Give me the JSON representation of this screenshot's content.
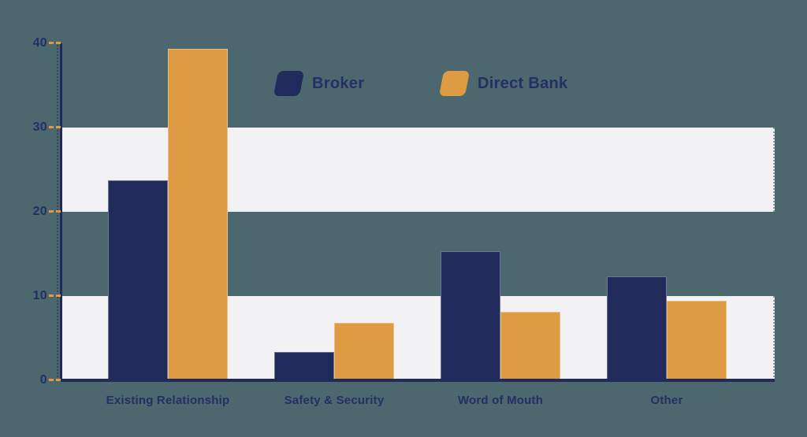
{
  "colors": {
    "background": "#4d676e",
    "navy": "#202b5b",
    "orange": "#df9b43",
    "band": "#f2f1f3",
    "text": "#262f63"
  },
  "chart_data": {
    "type": "bar",
    "title": "",
    "xlabel": "",
    "ylabel": "",
    "categories": [
      "Existing Relationship",
      "Safety & Security",
      "Word of Mouth",
      "Other"
    ],
    "series": [
      {
        "name": "Broker",
        "color": "#202b5b",
        "values": [
          23.7,
          3.4,
          15.3,
          12.3
        ]
      },
      {
        "name": "Direct Bank",
        "color": "#df9b43",
        "values": [
          39.3,
          6.8,
          8.1,
          9.4
        ]
      }
    ],
    "ylim": [
      0,
      40
    ],
    "yticks": [
      0,
      10,
      20,
      30,
      40
    ],
    "grid": false,
    "shaded_bands": [
      {
        "from": 20,
        "to": 30
      },
      {
        "from": 0,
        "to": 10
      }
    ],
    "band_color": "#f2f1f3",
    "tick_color": "#df9b43",
    "axis_color": "#202b5b",
    "legend_position": "top-center"
  }
}
